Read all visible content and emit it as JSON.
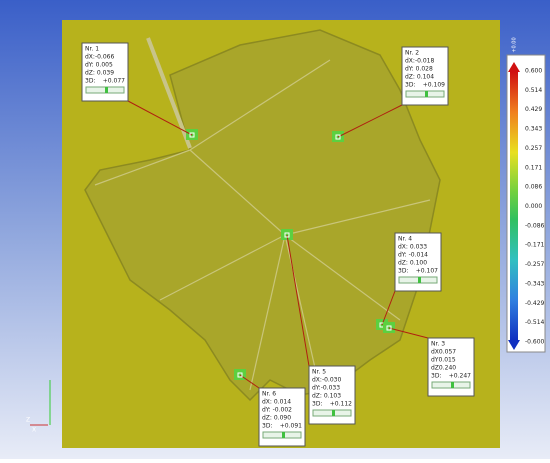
{
  "color_scale": {
    "top_label": "+0.00",
    "labels": [
      "0.600",
      "0.514",
      "0.429",
      "0.343",
      "0.257",
      "0.171",
      "0.086",
      "0.000",
      "-0.086",
      "-0.171",
      "-0.257",
      "-0.343",
      "-0.429",
      "-0.514",
      "-0.600"
    ]
  },
  "axes": {
    "vertical": "Z",
    "horizontal": "X"
  },
  "callouts": [
    {
      "lines": [
        "Nr. 1",
        "dX:-0.066",
        "dY: 0.005",
        "dZ: 0.039"
      ],
      "three_d_label": "3D:",
      "three_d_value": "+0.077"
    },
    {
      "lines": [
        "Nr. 2",
        "dX:-0.018",
        "dY: 0.028",
        "dZ: 0.104"
      ],
      "three_d_label": "3D:",
      "three_d_value": "+0.109"
    },
    {
      "lines": [
        "Nr. 4",
        "dX: 0.033",
        "dY: -0.014",
        "dZ: 0.100"
      ],
      "three_d_label": "3D:",
      "three_d_value": "+0.107"
    },
    {
      "lines": [
        "Nr. 3",
        "dX0.057",
        "dY0.015",
        "dZ0.240"
      ],
      "three_d_label": "3D:",
      "three_d_value": "+0.247"
    },
    {
      "lines": [
        "Nr. 5",
        "dX:-0.030",
        "dY:-0.033",
        "dZ: 0.103"
      ],
      "three_d_label": "3D:",
      "three_d_value": "+0.112"
    },
    {
      "lines": [
        "Nr. 6",
        "dX: 0.014",
        "dY: -0.002",
        "dZ: 0.090"
      ],
      "three_d_label": "3D:",
      "three_d_value": "+0.091"
    }
  ]
}
